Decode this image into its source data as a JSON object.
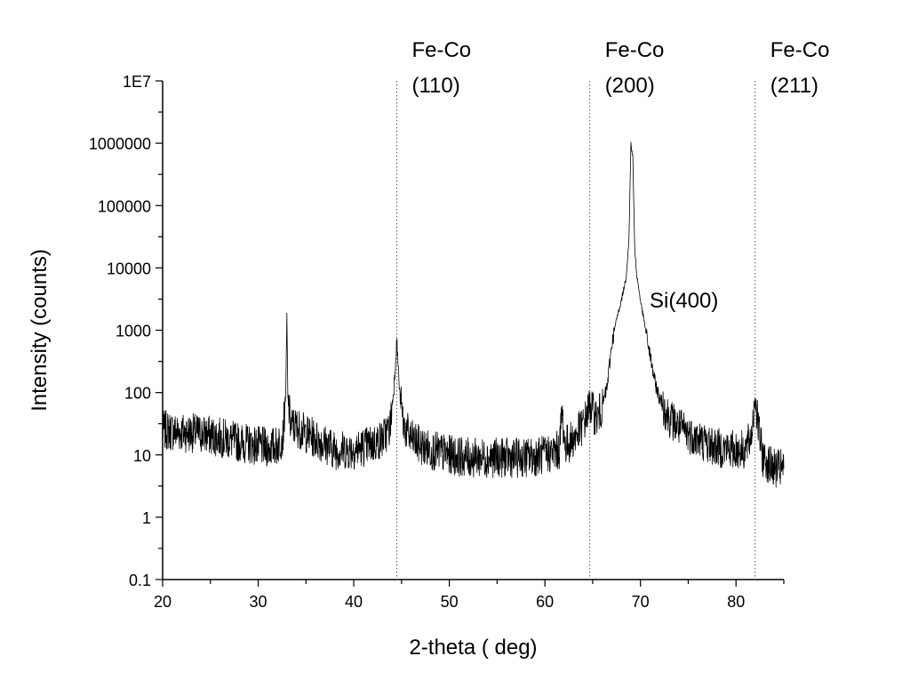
{
  "chart_data": {
    "type": "line",
    "title": "",
    "xlabel": "2-theta ( deg)",
    "ylabel": "Intensity (counts)",
    "xlim": [
      20,
      85
    ],
    "ylim": [
      0.1,
      10000000
    ],
    "yscale": "log",
    "grid": false,
    "x_ticks": [
      20,
      30,
      40,
      50,
      60,
      70,
      80
    ],
    "x_tick_labels": [
      "20",
      "30",
      "40",
      "50",
      "60",
      "70",
      "80"
    ],
    "y_ticks": [
      0.1,
      1,
      10,
      100,
      1000,
      10000,
      100000,
      1000000,
      10000000
    ],
    "y_tick_labels": [
      "0.1",
      "1",
      "10",
      "100",
      "1000",
      "10000",
      "100000",
      "1000000",
      "1E7"
    ],
    "series": [
      {
        "color": "#000000",
        "x": [
          20,
          22,
          24,
          26,
          28,
          30,
          31,
          32,
          32.6,
          32.9,
          33.0,
          33.1,
          33.4,
          34,
          35,
          36,
          37,
          38,
          40,
          42,
          43,
          43.8,
          44.2,
          44.5,
          44.8,
          45.2,
          46,
          47,
          48,
          50,
          52,
          54,
          56,
          58,
          60,
          61.5,
          61.8,
          62.1,
          63,
          64,
          64.5,
          64.8,
          65.1,
          65.5,
          66,
          66.5,
          67,
          67.5,
          68,
          68.5,
          68.8,
          69.0,
          69.2,
          69.4,
          69.6,
          70,
          70.5,
          71,
          71.5,
          72,
          73,
          74,
          75,
          76,
          78,
          80,
          81,
          81.6,
          82.0,
          82.3,
          82.8,
          83.5,
          84,
          85
        ],
        "y": [
          25,
          23,
          22,
          19,
          16,
          14,
          13,
          14,
          20,
          120,
          1800,
          80,
          30,
          28,
          22,
          18,
          15,
          12,
          12,
          15,
          18,
          28,
          120,
          700,
          100,
          30,
          18,
          14,
          12,
          10,
          9,
          9,
          9,
          9,
          10,
          12,
          50,
          14,
          18,
          30,
          50,
          65,
          45,
          40,
          60,
          120,
          600,
          1500,
          3000,
          7000,
          30000,
          1000000,
          600000,
          20000,
          8000,
          3000,
          1100,
          400,
          150,
          80,
          40,
          28,
          22,
          18,
          13,
          12,
          12,
          20,
          80,
          30,
          9,
          7,
          6,
          6
        ]
      }
    ],
    "annotations": [
      {
        "text": [
          "Fe-Co",
          "(110)"
        ],
        "x": 44.5
      },
      {
        "text": [
          "Fe-Co",
          "(200)"
        ],
        "x": 64.7
      },
      {
        "text": [
          "Fe-Co",
          "(211)"
        ],
        "x": 82.0
      },
      {
        "text": [
          "Si(400)"
        ],
        "x": 69.2
      }
    ]
  }
}
